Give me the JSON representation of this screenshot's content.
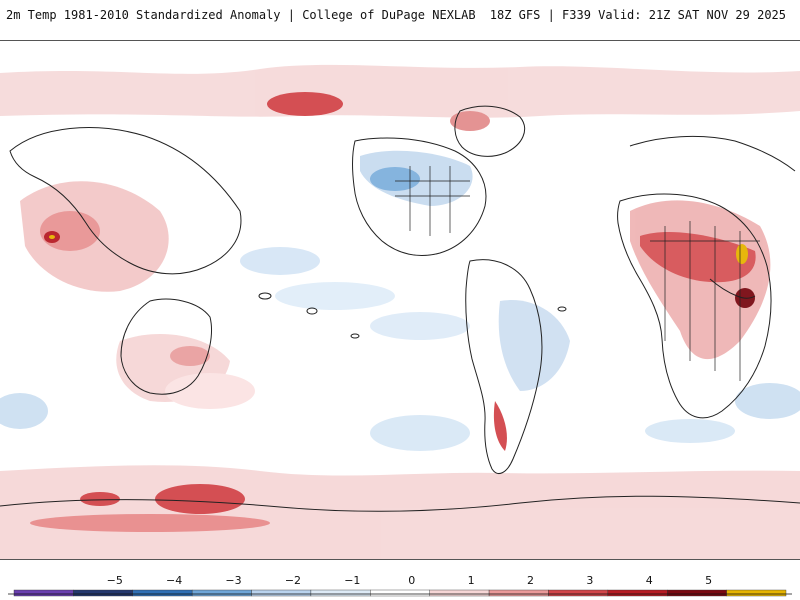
{
  "header": {
    "title_left": "2m Temp 1981-2010 Standardized Anomaly | College of DuPage NEXLAB",
    "title_right": "18Z GFS | F339 Valid: 21Z SAT NOV 29 2025"
  },
  "legend": {
    "labels": [
      "−5",
      "−4",
      "−3",
      "−2",
      "−1",
      "0",
      "1",
      "2",
      "3",
      "4",
      "5"
    ],
    "colors": [
      "#6a3fb0",
      "#24386e",
      "#2f6fb4",
      "#6ea6d8",
      "#b9d3ee",
      "#ddeaf6",
      "#ffffff",
      "#f6d6d6",
      "#ea9a9a",
      "#d2464a",
      "#b71c24",
      "#7a0a12",
      "#e6b400"
    ]
  },
  "map": {
    "land_color": "#ffffff",
    "coast_color": "#222222",
    "warm_color": "#f4c7c7",
    "cold_color": "#c8dcf0"
  }
}
